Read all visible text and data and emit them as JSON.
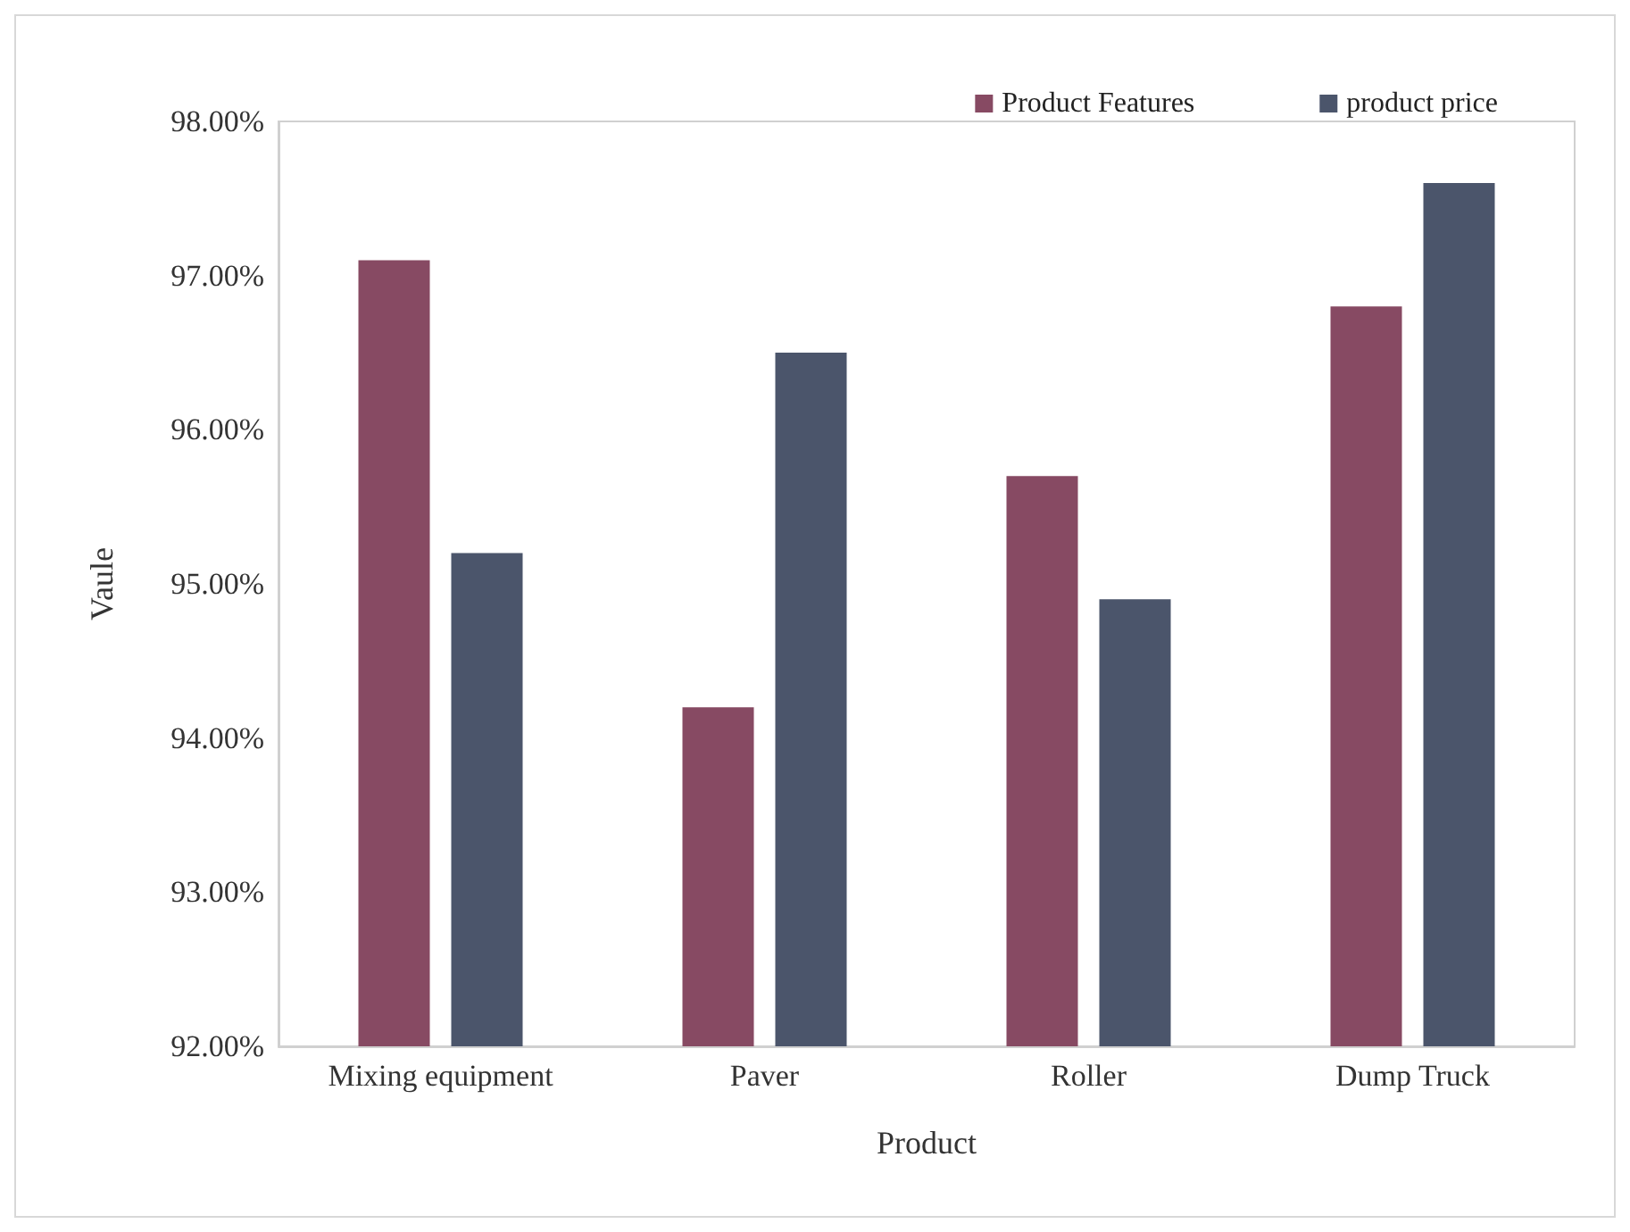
{
  "chart_data": {
    "type": "bar",
    "xlabel": "Product",
    "ylabel": "Vaule",
    "categories": [
      "Mixing equipment",
      "Paver",
      "Roller",
      "Dump Truck"
    ],
    "series": [
      {
        "name": "Product Features",
        "color": "#874a63",
        "values": [
          97.1,
          94.2,
          95.7,
          96.8
        ]
      },
      {
        "name": "product price",
        "color": "#4b556b",
        "values": [
          95.2,
          96.5,
          94.9,
          97.6
        ]
      }
    ],
    "ylim": [
      92,
      98
    ],
    "yticks": [
      {
        "value": 92,
        "label": "92.00%"
      },
      {
        "value": 93,
        "label": "93.00%"
      },
      {
        "value": 94,
        "label": "94.00%"
      },
      {
        "value": 95,
        "label": "95.00%"
      },
      {
        "value": 96,
        "label": "96.00%"
      },
      {
        "value": 97,
        "label": "97.00%"
      },
      {
        "value": 98,
        "label": "98.00%"
      }
    ],
    "grid": false,
    "legend": "top right"
  }
}
